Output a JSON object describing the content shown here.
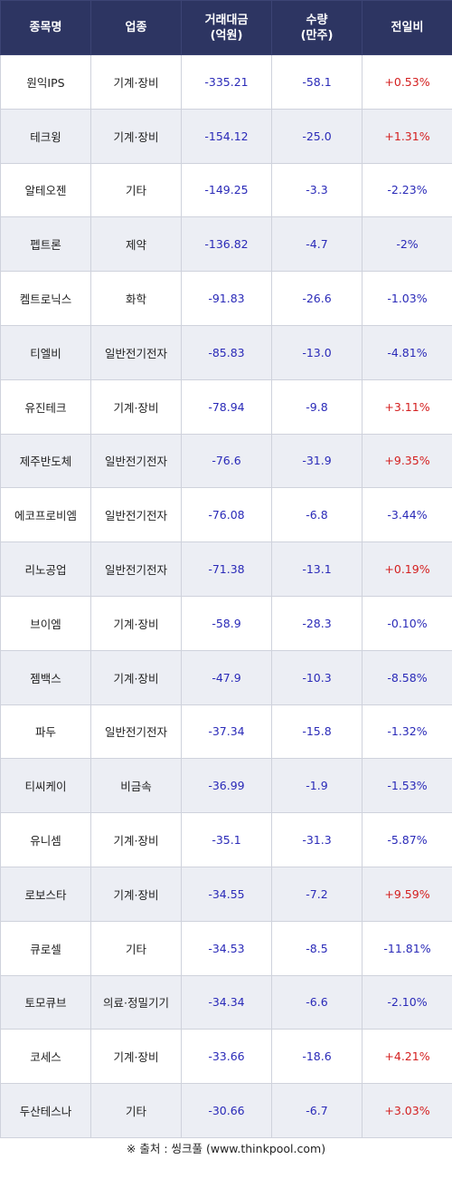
{
  "table": {
    "headers": {
      "name": "종목명",
      "sector": "업종",
      "amount_line1": "거래대금",
      "amount_line2": "(억원)",
      "volume_line1": "수량",
      "volume_line2": "(만주)",
      "change": "전일비"
    },
    "rows": [
      {
        "name": "원익IPS",
        "sector": "기계·장비",
        "amount": "-335.21",
        "volume": "-58.1",
        "change": "+0.53%",
        "dir": "up"
      },
      {
        "name": "테크윙",
        "sector": "기계·장비",
        "amount": "-154.12",
        "volume": "-25.0",
        "change": "+1.31%",
        "dir": "up"
      },
      {
        "name": "알테오젠",
        "sector": "기타",
        "amount": "-149.25",
        "volume": "-3.3",
        "change": "-2.23%",
        "dir": "down"
      },
      {
        "name": "펩트론",
        "sector": "제약",
        "amount": "-136.82",
        "volume": "-4.7",
        "change": "-2%",
        "dir": "down"
      },
      {
        "name": "켐트로닉스",
        "sector": "화학",
        "amount": "-91.83",
        "volume": "-26.6",
        "change": "-1.03%",
        "dir": "down"
      },
      {
        "name": "티엘비",
        "sector": "일반전기전자",
        "amount": "-85.83",
        "volume": "-13.0",
        "change": "-4.81%",
        "dir": "down"
      },
      {
        "name": "유진테크",
        "sector": "기계·장비",
        "amount": "-78.94",
        "volume": "-9.8",
        "change": "+3.11%",
        "dir": "up"
      },
      {
        "name": "제주반도체",
        "sector": "일반전기전자",
        "amount": "-76.6",
        "volume": "-31.9",
        "change": "+9.35%",
        "dir": "up"
      },
      {
        "name": "에코프로비엠",
        "sector": "일반전기전자",
        "amount": "-76.08",
        "volume": "-6.8",
        "change": "-3.44%",
        "dir": "down"
      },
      {
        "name": "리노공업",
        "sector": "일반전기전자",
        "amount": "-71.38",
        "volume": "-13.1",
        "change": "+0.19%",
        "dir": "up"
      },
      {
        "name": "브이엠",
        "sector": "기계·장비",
        "amount": "-58.9",
        "volume": "-28.3",
        "change": "-0.10%",
        "dir": "down"
      },
      {
        "name": "젬백스",
        "sector": "기계·장비",
        "amount": "-47.9",
        "volume": "-10.3",
        "change": "-8.58%",
        "dir": "down"
      },
      {
        "name": "파두",
        "sector": "일반전기전자",
        "amount": "-37.34",
        "volume": "-15.8",
        "change": "-1.32%",
        "dir": "down"
      },
      {
        "name": "티씨케이",
        "sector": "비금속",
        "amount": "-36.99",
        "volume": "-1.9",
        "change": "-1.53%",
        "dir": "down"
      },
      {
        "name": "유니셈",
        "sector": "기계·장비",
        "amount": "-35.1",
        "volume": "-31.3",
        "change": "-5.87%",
        "dir": "down"
      },
      {
        "name": "로보스타",
        "sector": "기계·장비",
        "amount": "-34.55",
        "volume": "-7.2",
        "change": "+9.59%",
        "dir": "up"
      },
      {
        "name": "큐로셀",
        "sector": "기타",
        "amount": "-34.53",
        "volume": "-8.5",
        "change": "-11.81%",
        "dir": "down"
      },
      {
        "name": "토모큐브",
        "sector": "의료·정밀기기",
        "amount": "-34.34",
        "volume": "-6.6",
        "change": "-2.10%",
        "dir": "down"
      },
      {
        "name": "코세스",
        "sector": "기계·장비",
        "amount": "-33.66",
        "volume": "-18.6",
        "change": "+4.21%",
        "dir": "up"
      },
      {
        "name": "두산테스나",
        "sector": "기타",
        "amount": "-30.66",
        "volume": "-6.7",
        "change": "+3.03%",
        "dir": "up"
      }
    ]
  },
  "footer": {
    "source": "※ 출처 : 씽크풀 (www.thinkpool.com)"
  },
  "colors": {
    "header_bg": "#2d3562",
    "up": "#d42020",
    "down": "#2a2ab8",
    "stripe": "#eceef4"
  }
}
